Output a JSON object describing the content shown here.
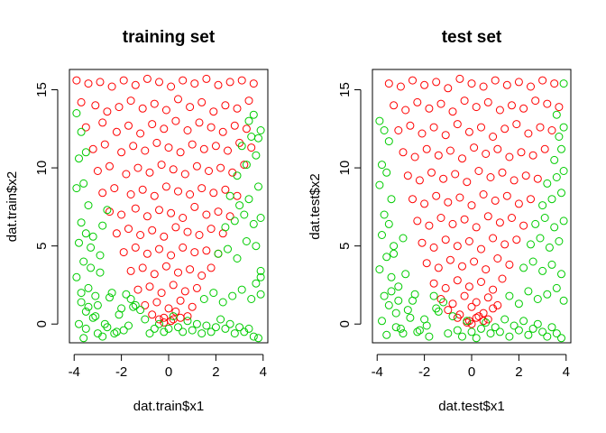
{
  "chart_data": [
    {
      "type": "scatter",
      "title": "training set",
      "xlabel": "dat.train$x1",
      "ylabel": "dat.train$x2",
      "xlim": [
        -4.2,
        4.2
      ],
      "ylim": [
        -1.2,
        16.3
      ],
      "xticks": [
        -4,
        -2,
        0,
        2,
        4
      ],
      "yticks": [
        0,
        5,
        10,
        15
      ],
      "xtick_labels": [
        "-4",
        "-2",
        "0",
        "2",
        "4"
      ],
      "ytick_labels": [
        "0",
        "5",
        "10",
        "15"
      ],
      "grid": false,
      "legend": "none",
      "series": [
        {
          "color": "#ff0000",
          "marker": "open-circle",
          "x": [
            -3.9,
            -3.4,
            -2.9,
            -2.4,
            -1.9,
            -1.4,
            -0.9,
            -0.4,
            0.1,
            0.6,
            1.1,
            1.6,
            2.1,
            2.6,
            3.1,
            3.6,
            -3.7,
            -3.1,
            -2.6,
            -2.1,
            -1.6,
            -1.1,
            -0.6,
            -0.1,
            0.4,
            0.9,
            1.4,
            1.9,
            2.4,
            2.9,
            3.4,
            -3.5,
            -2.8,
            -2.2,
            -1.7,
            -1.2,
            -0.7,
            -0.2,
            0.3,
            0.8,
            1.3,
            1.8,
            2.3,
            2.8,
            3.3,
            -3.2,
            -2.7,
            -2.0,
            -1.5,
            -1.0,
            -0.5,
            0.0,
            0.5,
            1.0,
            1.5,
            2.0,
            2.5,
            3.0,
            3.5,
            -3.0,
            -2.5,
            -1.8,
            -1.3,
            -0.8,
            -0.3,
            0.2,
            0.7,
            1.2,
            1.7,
            2.2,
            2.7,
            3.2,
            -2.8,
            -2.3,
            -1.6,
            -1.1,
            -0.6,
            -0.1,
            0.4,
            0.9,
            1.4,
            1.9,
            2.4,
            2.9,
            -2.5,
            -2.0,
            -1.4,
            -0.9,
            -0.4,
            0.1,
            0.6,
            1.1,
            1.6,
            2.1,
            2.6,
            -2.2,
            -1.7,
            -1.2,
            -0.7,
            -0.2,
            0.3,
            0.8,
            1.3,
            1.8,
            2.3,
            -1.9,
            -1.4,
            -0.9,
            -0.4,
            0.1,
            0.6,
            1.1,
            1.6,
            2.1,
            -1.6,
            -1.1,
            -0.6,
            -0.1,
            0.4,
            0.9,
            1.4,
            1.8,
            -1.3,
            -0.8,
            -0.3,
            0.2,
            0.7,
            1.2,
            -1.0,
            -0.5,
            0.0,
            0.5,
            1.0,
            -0.7,
            -0.2,
            0.3,
            0.8,
            -0.4,
            0.1,
            0.5,
            -0.2,
            0.2
          ],
          "y": [
            15.6,
            15.4,
            15.5,
            15.2,
            15.6,
            15.3,
            15.7,
            15.5,
            15.2,
            15.6,
            15.4,
            15.7,
            15.3,
            15.5,
            15.6,
            15.4,
            14.2,
            14.0,
            13.6,
            13.9,
            14.3,
            13.8,
            14.1,
            13.7,
            14.4,
            13.9,
            14.2,
            13.6,
            14.0,
            13.8,
            14.3,
            12.6,
            12.9,
            12.3,
            12.7,
            12.2,
            12.8,
            12.5,
            13.0,
            12.4,
            12.9,
            12.6,
            12.3,
            12.7,
            12.5,
            11.2,
            11.5,
            11.0,
            11.4,
            11.1,
            11.6,
            11.3,
            11.0,
            11.5,
            11.2,
            11.4,
            11.1,
            11.6,
            11.3,
            9.8,
            10.1,
            9.6,
            10.0,
            9.7,
            10.2,
            9.9,
            9.6,
            10.1,
            9.8,
            10.0,
            9.7,
            10.2,
            8.4,
            8.7,
            8.3,
            8.6,
            8.2,
            8.8,
            8.5,
            8.3,
            8.7,
            8.4,
            8.6,
            8.2,
            7.2,
            7.0,
            7.4,
            6.9,
            7.3,
            7.1,
            6.8,
            7.5,
            7.0,
            7.2,
            6.9,
            5.8,
            6.1,
            5.7,
            6.0,
            5.6,
            6.2,
            5.9,
            5.7,
            6.1,
            5.8,
            4.6,
            4.9,
            4.5,
            4.8,
            4.4,
            4.9,
            4.6,
            4.7,
            4.5,
            3.4,
            3.6,
            3.2,
            3.7,
            3.3,
            3.5,
            3.1,
            3.6,
            2.2,
            2.4,
            2.0,
            2.5,
            2.1,
            2.3,
            1.2,
            1.4,
            1.0,
            1.5,
            1.1,
            0.6,
            0.4,
            0.8,
            0.5,
            0.3,
            0.2,
            0.4,
            0.1,
            0.3
          ]
        },
        {
          "color": "#00cc00",
          "marker": "open-circle",
          "x": [
            -3.9,
            -3.7,
            -3.5,
            -3.8,
            -3.6,
            -3.9,
            -3.4,
            -3.7,
            -3.5,
            -3.8,
            -3.3,
            -3.6,
            -3.9,
            -3.4,
            -3.1,
            -3.7,
            -3.5,
            -3.2,
            -3.8,
            -3.0,
            -3.6,
            -3.3,
            -2.9,
            -3.7,
            -3.4,
            -3.1,
            -2.8,
            -3.5,
            -2.6,
            -3.2,
            -2.9,
            -2.4,
            -3.0,
            -2.7,
            -2.2,
            -2.8,
            -2.5,
            -2.0,
            -2.6,
            -1.8,
            -2.3,
            -1.6,
            -2.1,
            -1.4,
            -1.9,
            -1.2,
            -1.7,
            -1.0,
            -0.8,
            -1.5,
            -0.6,
            -0.4,
            -0.2,
            0.0,
            0.2,
            0.4,
            0.6,
            0.8,
            1.0,
            1.2,
            1.4,
            1.6,
            1.8,
            2.0,
            2.2,
            2.4,
            2.6,
            2.8,
            3.0,
            3.2,
            3.4,
            3.6,
            3.8,
            1.5,
            1.9,
            2.3,
            2.7,
            3.1,
            3.5,
            3.9,
            2.1,
            2.5,
            2.9,
            3.3,
            3.7,
            2.4,
            2.8,
            3.2,
            3.6,
            3.9,
            2.6,
            3.0,
            3.4,
            3.8,
            2.9,
            3.3,
            3.7,
            3.1,
            3.5,
            3.9,
            3.4,
            3.8,
            3.6,
            3.9,
            3.7,
            3.9
          ],
          "y": [
            13.5,
            12.3,
            11.0,
            10.6,
            9.0,
            8.7,
            7.6,
            6.5,
            5.8,
            5.2,
            4.9,
            4.0,
            3.0,
            2.3,
            1.8,
            1.4,
            0.8,
            0.4,
            0.0,
            -0.6,
            -0.9,
            3.6,
            4.4,
            2.0,
            1.1,
            0.5,
            6.3,
            -0.3,
            7.3,
            5.6,
            3.3,
            2.0,
            1.2,
            0.0,
            -0.5,
            -0.8,
            1.7,
            1.0,
            -0.2,
            1.9,
            -0.6,
            1.6,
            0.6,
            1.2,
            -0.4,
            0.9,
            -0.1,
            0.3,
            -0.6,
            1.1,
            -0.3,
            0.0,
            -0.5,
            -0.3,
            0.5,
            -0.2,
            -0.5,
            0.2,
            -0.4,
            0.0,
            -0.6,
            -0.1,
            -0.5,
            -0.2,
            0.3,
            -0.3,
            0.0,
            -0.6,
            -0.2,
            -0.5,
            -0.3,
            -0.8,
            -0.9,
            1.6,
            2.0,
            1.4,
            1.8,
            2.2,
            1.6,
            1.9,
            4.5,
            4.8,
            4.2,
            5.3,
            5.0,
            6.2,
            6.6,
            7.0,
            6.4,
            6.8,
            8.2,
            7.6,
            8.0,
            8.8,
            9.5,
            10.2,
            10.8,
            11.4,
            12.0,
            12.4,
            13.0,
            11.9,
            13.4,
            3.0,
            2.6,
            3.4
          ]
        }
      ]
    },
    {
      "type": "scatter",
      "title": "test set",
      "xlabel": "dat.test$x1",
      "ylabel": "dat.test$x2",
      "xlim": [
        -4.2,
        4.2
      ],
      "ylim": [
        -1.2,
        16.3
      ],
      "xticks": [
        -4,
        -2,
        0,
        2,
        4
      ],
      "yticks": [
        0,
        5,
        10,
        15
      ],
      "xtick_labels": [
        "-4",
        "-2",
        "0",
        "2",
        "4"
      ],
      "ytick_labels": [
        "0",
        "5",
        "10",
        "15"
      ],
      "grid": false,
      "legend": "none",
      "series": [
        {
          "color": "#ff0000",
          "marker": "open-circle",
          "x": [
            -3.5,
            -3.0,
            -2.5,
            -2.0,
            -1.5,
            -1.0,
            -0.5,
            0.0,
            0.5,
            1.0,
            1.5,
            2.0,
            2.5,
            3.0,
            3.5,
            -3.3,
            -2.8,
            -2.3,
            -1.8,
            -1.3,
            -0.8,
            -0.3,
            0.2,
            0.7,
            1.2,
            1.7,
            2.2,
            2.7,
            3.2,
            3.7,
            -3.1,
            -2.6,
            -2.1,
            -1.6,
            -1.1,
            -0.6,
            -0.1,
            0.4,
            0.9,
            1.4,
            1.9,
            2.4,
            2.9,
            3.4,
            -2.9,
            -2.4,
            -1.9,
            -1.4,
            -0.9,
            -0.4,
            0.1,
            0.6,
            1.1,
            1.6,
            2.1,
            2.6,
            3.1,
            -2.7,
            -2.2,
            -1.7,
            -1.2,
            -0.7,
            -0.2,
            0.3,
            0.8,
            1.3,
            1.8,
            2.3,
            2.8,
            -2.5,
            -2.0,
            -1.5,
            -1.0,
            -0.5,
            0.0,
            0.5,
            1.0,
            1.5,
            2.0,
            2.5,
            -2.3,
            -1.8,
            -1.3,
            -0.8,
            -0.3,
            0.2,
            0.7,
            1.2,
            1.7,
            2.2,
            -2.1,
            -1.6,
            -1.1,
            -0.6,
            -0.1,
            0.4,
            0.9,
            1.4,
            1.9,
            -1.9,
            -1.4,
            -0.9,
            -0.4,
            0.1,
            0.6,
            1.1,
            1.6,
            -1.6,
            -1.1,
            -0.6,
            -0.1,
            0.4,
            0.9,
            1.3,
            -1.3,
            -0.8,
            -0.3,
            0.2,
            0.7,
            1.1,
            -1.0,
            -0.5,
            0.0,
            0.5,
            0.9,
            -0.6,
            -0.1,
            0.3,
            0.7,
            -0.2,
            0.2,
            0.5,
            0.0
          ],
          "y": [
            15.4,
            15.2,
            15.6,
            15.3,
            15.5,
            15.1,
            15.7,
            15.4,
            15.2,
            15.6,
            15.3,
            15.5,
            15.2,
            15.6,
            15.4,
            14.0,
            13.7,
            14.2,
            13.8,
            14.1,
            13.6,
            14.3,
            13.9,
            14.2,
            13.7,
            14.0,
            13.8,
            14.3,
            14.1,
            13.9,
            12.4,
            12.7,
            12.2,
            12.6,
            12.1,
            12.8,
            12.3,
            12.6,
            12.0,
            12.5,
            12.8,
            12.2,
            12.6,
            12.4,
            11.0,
            10.7,
            11.2,
            10.8,
            11.1,
            10.6,
            11.3,
            10.9,
            11.2,
            10.7,
            11.0,
            10.8,
            11.2,
            9.5,
            9.2,
            9.7,
            9.3,
            9.6,
            9.1,
            9.8,
            9.4,
            9.7,
            9.2,
            9.5,
            9.3,
            8.0,
            7.7,
            8.2,
            7.8,
            8.1,
            7.6,
            8.3,
            7.9,
            8.2,
            7.7,
            8.0,
            6.6,
            6.3,
            6.8,
            6.4,
            6.7,
            6.2,
            6.9,
            6.5,
            6.8,
            6.3,
            5.2,
            4.9,
            5.4,
            5.0,
            5.3,
            4.8,
            5.5,
            5.1,
            5.4,
            3.9,
            3.6,
            4.1,
            3.7,
            4.0,
            3.5,
            4.2,
            3.8,
            2.6,
            2.3,
            2.8,
            2.4,
            2.7,
            2.2,
            2.9,
            1.6,
            1.3,
            1.8,
            1.4,
            1.7,
            1.2,
            0.9,
            0.6,
            1.1,
            0.7,
            1.0,
            0.4,
            0.2,
            0.5,
            0.3,
            0.1,
            0.4,
            0.2,
            0.0
          ]
        },
        {
          "color": "#00cc00",
          "marker": "open-circle",
          "x": [
            -3.9,
            -3.7,
            -3.5,
            -3.8,
            -3.6,
            -3.9,
            -3.4,
            -3.7,
            -3.5,
            -3.8,
            -3.3,
            -3.6,
            -3.9,
            -3.4,
            -3.1,
            -3.7,
            -3.5,
            -3.2,
            -3.8,
            -3.0,
            -3.6,
            -3.3,
            -2.9,
            -3.4,
            -3.1,
            -2.8,
            -2.6,
            -3.2,
            -2.9,
            -2.4,
            -2.7,
            -2.2,
            -2.5,
            -2.0,
            -1.8,
            -2.3,
            -1.6,
            -1.4,
            -1.9,
            -1.2,
            -1.0,
            -0.8,
            -1.5,
            -0.6,
            -0.4,
            -0.2,
            0.0,
            0.2,
            0.4,
            0.6,
            0.8,
            1.0,
            1.2,
            1.4,
            1.6,
            1.8,
            2.0,
            2.2,
            2.4,
            2.6,
            2.8,
            3.0,
            3.2,
            3.4,
            3.6,
            3.8,
            1.6,
            2.0,
            2.4,
            2.8,
            3.2,
            3.6,
            3.9,
            2.2,
            2.6,
            3.0,
            3.4,
            3.8,
            2.5,
            2.9,
            3.3,
            3.7,
            2.7,
            3.1,
            3.5,
            3.9,
            3.0,
            3.4,
            3.8,
            3.2,
            3.6,
            3.9,
            3.5,
            3.8,
            3.7,
            3.9,
            3.6,
            3.9
          ],
          "y": [
            13.0,
            12.4,
            11.7,
            10.2,
            9.7,
            8.9,
            8.0,
            7.0,
            6.4,
            5.7,
            5.0,
            4.3,
            3.5,
            3.0,
            2.4,
            1.8,
            1.2,
            0.7,
            0.2,
            -0.3,
            -0.7,
            4.5,
            5.5,
            2.1,
            1.5,
            3.2,
            0.4,
            -0.2,
            -0.6,
            1.9,
            0.9,
            -0.4,
            1.5,
            0.3,
            -0.8,
            -0.5,
            1.8,
            0.8,
            -0.1,
            1.4,
            -0.6,
            0.5,
            1.0,
            -0.4,
            -0.8,
            0.2,
            -0.5,
            -0.9,
            -0.3,
            0.1,
            -0.6,
            -0.2,
            -0.5,
            0.3,
            -0.8,
            -0.1,
            -0.4,
            0.2,
            -0.7,
            -0.3,
            0.0,
            -0.5,
            -0.8,
            -0.2,
            -0.6,
            -0.9,
            1.8,
            1.3,
            2.1,
            1.6,
            1.9,
            2.3,
            1.5,
            3.6,
            4.0,
            3.4,
            3.8,
            3.2,
            5.1,
            5.5,
            4.9,
            5.3,
            6.4,
            6.8,
            6.2,
            6.6,
            7.6,
            8.0,
            8.4,
            9.0,
            9.4,
            9.8,
            10.5,
            11.2,
            12.0,
            12.6,
            13.4,
            15.4
          ]
        }
      ]
    }
  ]
}
